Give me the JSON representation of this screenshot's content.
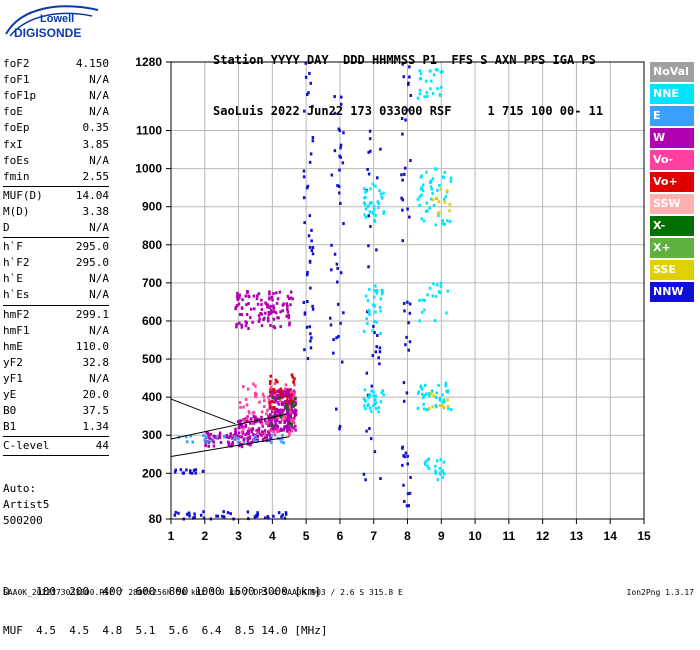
{
  "logo": {
    "line1": "Lowell",
    "line2": "DIGISONDE"
  },
  "header": {
    "row1": "Station YYYY DAY  DDD HHMMSS P1  FFS S AXN PPS IGA PS",
    "row2": "SaoLuis 2022 Jun22 173 033000 RSF     1 715 100 00- 11"
  },
  "params": [
    {
      "name": "foF2",
      "value": "4.150"
    },
    {
      "name": "foF1",
      "value": "N/A"
    },
    {
      "name": "foF1p",
      "value": "N/A"
    },
    {
      "name": "foE",
      "value": "N/A"
    },
    {
      "name": "foEp",
      "value": "0.35"
    },
    {
      "name": "fxI",
      "value": "3.85"
    },
    {
      "name": "foEs",
      "value": "N/A"
    },
    {
      "name": "fmin",
      "value": "2.55"
    },
    {
      "name": "MUF(D)",
      "value": "14.04"
    },
    {
      "name": "M(D)",
      "value": "3.38"
    },
    {
      "name": "D",
      "value": "N/A"
    },
    {
      "name": "h`F",
      "value": "295.0"
    },
    {
      "name": "h`F2",
      "value": "295.0"
    },
    {
      "name": "h`E",
      "value": "N/A"
    },
    {
      "name": "h`Es",
      "value": "N/A"
    },
    {
      "name": "hmF2",
      "value": "299.1"
    },
    {
      "name": "hmF1",
      "value": "N/A"
    },
    {
      "name": "hmE",
      "value": "110.0"
    },
    {
      "name": "yF2",
      "value": "32.8"
    },
    {
      "name": "yF1",
      "value": "N/A"
    },
    {
      "name": "yE",
      "value": "20.0"
    },
    {
      "name": "B0",
      "value": "37.5"
    },
    {
      "name": "B1",
      "value": "1.34"
    },
    {
      "name": "C-level",
      "value": "44"
    }
  ],
  "auto": {
    "l1": "Auto:",
    "l2": "Artist5",
    "l3": "500200"
  },
  "legend": [
    {
      "label": "NoVal",
      "color": "#a0a0a0"
    },
    {
      "label": "NNE",
      "color": "#00e5ff"
    },
    {
      "label": "E",
      "color": "#3aa0ff"
    },
    {
      "label": "W",
      "color": "#b000b0"
    },
    {
      "label": "Vo-",
      "color": "#ff40a0"
    },
    {
      "label": "Vo+",
      "color": "#e00000"
    },
    {
      "label": "SSW",
      "color": "#ffb0b0"
    },
    {
      "label": "X-",
      "color": "#007000"
    },
    {
      "label": "X+",
      "color": "#60b040"
    },
    {
      "label": "SSE",
      "color": "#e0d000"
    },
    {
      "label": "NNW",
      "color": "#1010d0"
    }
  ],
  "muf_table": {
    "row1": "D    100  200  400  600  800 1000 1500 3000 [km]",
    "row2": "MUF  4.5  4.5  4.8  5.1  5.6  6.4  8.5 14.0 [MHz]"
  },
  "footer": {
    "left": "SAA0K_2022173033000.RSF / 280fx256h 50 kHz 5.0 km / DPS-4 SAA0K 903 / 2.6 S 315.8 E",
    "right": "Ion2Png 1.3.17"
  },
  "chart_data": {
    "type": "scatter",
    "title": "",
    "xlabel": "",
    "ylabel": "",
    "xlim": [
      1,
      15
    ],
    "ylim": [
      80,
      1280
    ],
    "xticks": [
      1,
      2,
      3,
      4,
      5,
      6,
      7,
      8,
      9,
      10,
      11,
      12,
      13,
      14,
      15
    ],
    "yticks": [
      80,
      200,
      300,
      400,
      500,
      600,
      700,
      800,
      900,
      1000,
      1100,
      1280
    ],
    "grid": true,
    "clusters": [
      {
        "series": "W",
        "x": [
          3.9,
          4.7
        ],
        "y": [
          310,
          420
        ],
        "n": 240
      },
      {
        "series": "W",
        "x": [
          2.9,
          4.0
        ],
        "y": [
          285,
          350
        ],
        "n": 120
      },
      {
        "series": "W",
        "x": [
          2.0,
          3.5
        ],
        "y": [
          270,
          310
        ],
        "n": 60
      },
      {
        "series": "W",
        "x": [
          2.9,
          4.6
        ],
        "y": [
          580,
          680
        ],
        "n": 110
      },
      {
        "series": "Vo-",
        "x": [
          3.0,
          4.7
        ],
        "y": [
          300,
          440
        ],
        "n": 80
      },
      {
        "series": "Vo+",
        "x": [
          3.9,
          4.7
        ],
        "y": [
          370,
          460
        ],
        "n": 35
      },
      {
        "series": "NNW",
        "x": [
          4.9,
          5.2
        ],
        "y": [
          500,
          1280
        ],
        "n": 45
      },
      {
        "series": "NNW",
        "x": [
          5.7,
          6.1
        ],
        "y": [
          300,
          1280
        ],
        "n": 40
      },
      {
        "series": "NNW",
        "x": [
          6.7,
          7.2
        ],
        "y": [
          180,
          1180
        ],
        "n": 35
      },
      {
        "series": "NNW",
        "x": [
          7.8,
          8.1
        ],
        "y": [
          100,
          1280
        ],
        "n": 50
      },
      {
        "series": "NNW",
        "x": [
          1.0,
          4.5
        ],
        "y": [
          80,
          100
        ],
        "n": 40
      },
      {
        "series": "NNW",
        "x": [
          1.0,
          2.0
        ],
        "y": [
          200,
          210
        ],
        "n": 15
      },
      {
        "series": "NNE",
        "x": [
          6.7,
          7.3
        ],
        "y": [
          360,
          420
        ],
        "n": 30
      },
      {
        "series": "NNE",
        "x": [
          6.7,
          7.3
        ],
        "y": [
          560,
          700
        ],
        "n": 30
      },
      {
        "series": "NNE",
        "x": [
          6.7,
          7.3
        ],
        "y": [
          860,
          960
        ],
        "n": 35
      },
      {
        "series": "NNE",
        "x": [
          8.3,
          9.3
        ],
        "y": [
          360,
          440
        ],
        "n": 40
      },
      {
        "series": "NNE",
        "x": [
          8.3,
          9.3
        ],
        "y": [
          850,
          1000
        ],
        "n": 45
      },
      {
        "series": "NNE",
        "x": [
          8.3,
          9.2
        ],
        "y": [
          600,
          700
        ],
        "n": 20
      },
      {
        "series": "NNE",
        "x": [
          8.3,
          9.1
        ],
        "y": [
          1180,
          1260
        ],
        "n": 25
      },
      {
        "series": "NNE",
        "x": [
          8.5,
          9.1
        ],
        "y": [
          180,
          240
        ],
        "n": 20
      },
      {
        "series": "SSE",
        "x": [
          8.7,
          9.3
        ],
        "y": [
          880,
          960
        ],
        "n": 12
      },
      {
        "series": "SSE",
        "x": [
          8.6,
          9.2
        ],
        "y": [
          370,
          420
        ],
        "n": 10
      },
      {
        "series": "X-",
        "x": [
          3.9,
          4.7
        ],
        "y": [
          320,
          400
        ],
        "n": 15
      },
      {
        "series": "E",
        "x": [
          1.2,
          4.4
        ],
        "y": [
          280,
          300
        ],
        "n": 30
      }
    ],
    "profile_lines": [
      {
        "x": [
          1.0,
          4.5
        ],
        "y": [
          244,
          296
        ]
      },
      {
        "x": [
          1.0,
          4.4
        ],
        "y": [
          290,
          355
        ]
      },
      {
        "x": [
          1.0,
          2.9
        ],
        "y": [
          395,
          330
        ]
      }
    ]
  }
}
